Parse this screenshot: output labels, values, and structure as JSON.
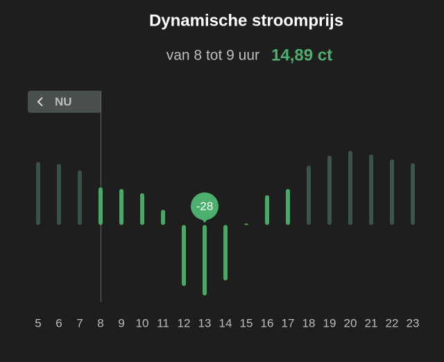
{
  "chart_data": {
    "type": "bar",
    "title": "Dynamische stroomprijs",
    "subtitle": "van 8 tot 9 uur",
    "current_price": "14,89 ct",
    "now_button": "NU",
    "categories": [
      "5",
      "6",
      "7",
      "8",
      "9",
      "10",
      "11",
      "12",
      "13",
      "14",
      "15",
      "16",
      "17",
      "18",
      "19",
      "20",
      "21",
      "22",
      "23"
    ],
    "values": [
      25,
      24.2,
      21.7,
      14.89,
      14.3,
      12.6,
      6,
      -24.2,
      -28,
      -22,
      0.5,
      11.8,
      14.3,
      23.6,
      27.5,
      29.4,
      28,
      26.1,
      24.5
    ],
    "colors": [
      "#395446",
      "#395446",
      "#395446",
      "#48a865",
      "#48a865",
      "#48a865",
      "#48a865",
      "#48a865",
      "#48a865",
      "#48a865",
      "#48a865",
      "#48a865",
      "#48a865",
      "#3c524c",
      "#3c524c",
      "#3c524c",
      "#3c524c",
      "#3c524c",
      "#3c524c"
    ]
  }
}
